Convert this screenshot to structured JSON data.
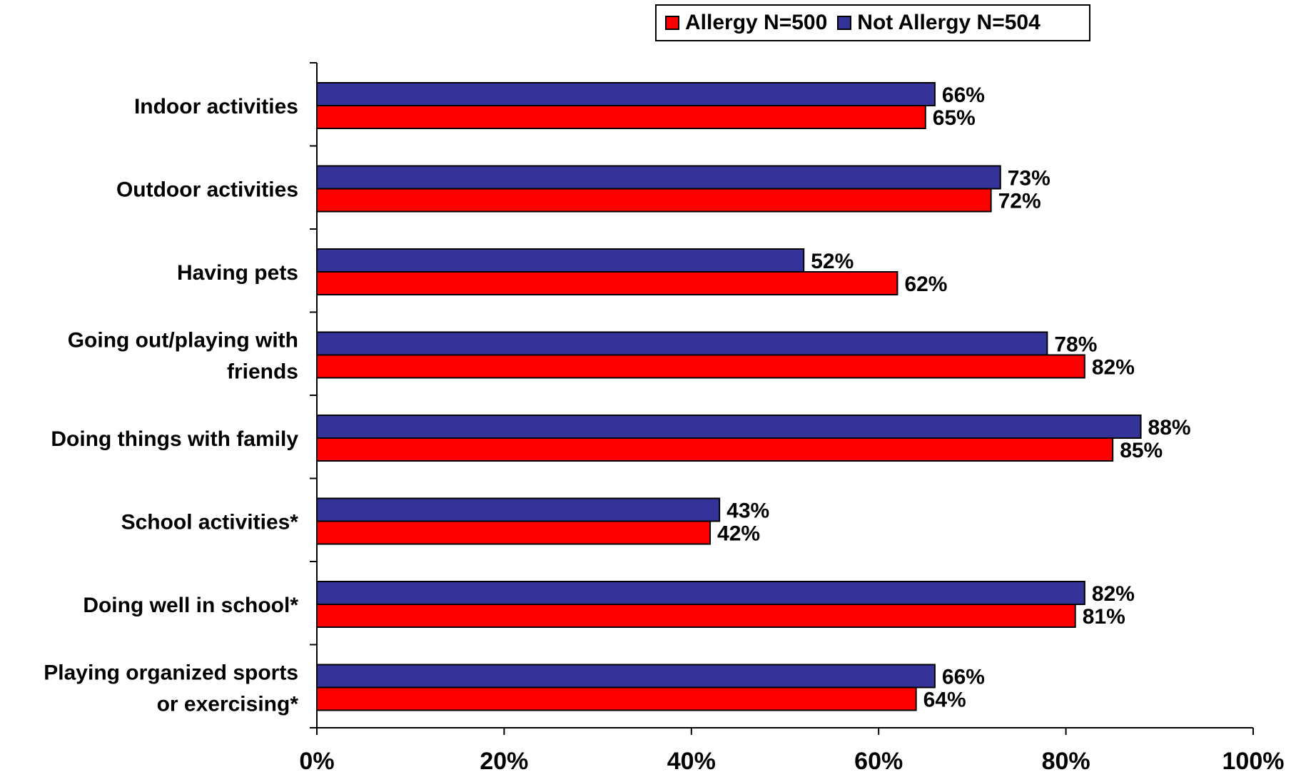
{
  "chart_data": {
    "type": "bar",
    "orientation": "horizontal",
    "categories": [
      "Indoor activities",
      "Outdoor activities",
      "Having pets",
      "Going out/playing with friends",
      "Doing things with family",
      "School activities*",
      "Doing well in school*",
      "Playing organized sports or exercising*"
    ],
    "category_lines": [
      [
        "Indoor activities"
      ],
      [
        "Outdoor activities"
      ],
      [
        "Having pets"
      ],
      [
        "Going out/playing with",
        "friends"
      ],
      [
        "Doing things with family"
      ],
      [
        "School activities*"
      ],
      [
        "Doing well in school*"
      ],
      [
        "Playing organized sports",
        "or exercising*"
      ]
    ],
    "series": [
      {
        "name": "Not Allergy N=504",
        "color": "#333399",
        "values": [
          66,
          73,
          52,
          78,
          88,
          43,
          82,
          66
        ]
      },
      {
        "name": "Allergy N=500",
        "color": "#ff0000",
        "values": [
          65,
          72,
          62,
          82,
          85,
          42,
          81,
          64
        ]
      }
    ],
    "value_suffix": "%",
    "xlim": [
      0,
      100
    ],
    "x_ticks": [
      "0%",
      "20%",
      "40%",
      "60%",
      "80%",
      "100%"
    ],
    "grid": false,
    "legend_position": "top-right",
    "title": "",
    "xlabel": "",
    "ylabel": ""
  },
  "legend": [
    {
      "label": "Allergy N=500",
      "color": "#ff0000"
    },
    {
      "label": "Not Allergy N=504",
      "color": "#333399"
    }
  ]
}
